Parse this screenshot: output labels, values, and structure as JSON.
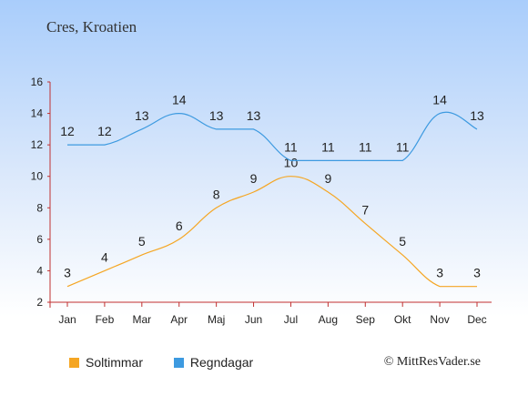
{
  "title": "Cres, Kroatien",
  "copyright": "© MittResVader.se",
  "chart_data": {
    "type": "line",
    "categories": [
      "Jan",
      "Feb",
      "Mar",
      "Apr",
      "Maj",
      "Jun",
      "Jul",
      "Aug",
      "Sep",
      "Okt",
      "Nov",
      "Dec"
    ],
    "series": [
      {
        "name": "Soltimmar",
        "color": "#f5a623",
        "values": [
          3,
          4,
          5,
          6,
          8,
          9,
          10,
          9,
          7,
          5,
          3,
          3
        ]
      },
      {
        "name": "Regndagar",
        "color": "#3d9ae0",
        "values": [
          12,
          12,
          13,
          14,
          13,
          13,
          11,
          11,
          11,
          11,
          14,
          13
        ]
      }
    ],
    "ylim": [
      2,
      16
    ],
    "yticks": [
      2,
      4,
      6,
      8,
      10,
      12,
      14,
      16
    ],
    "grid": false,
    "legend_position": "bottom"
  }
}
